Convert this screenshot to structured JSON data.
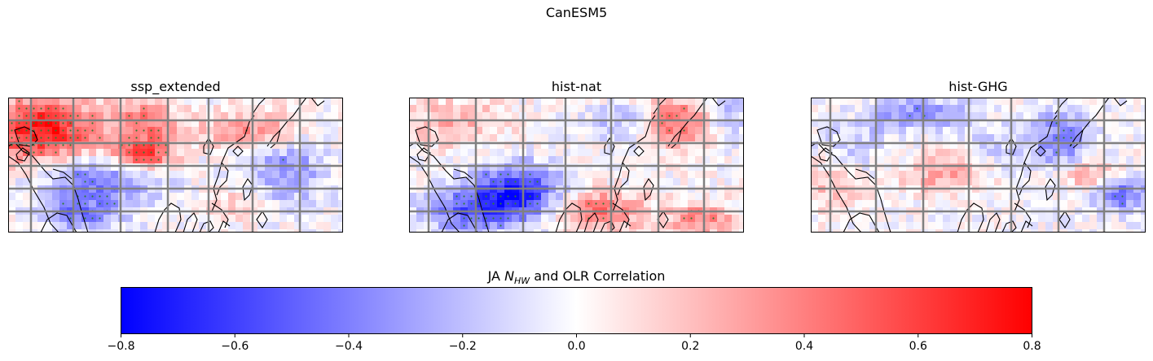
{
  "figure": {
    "suptitle": "CanESM5",
    "panels": [
      {
        "title": "ssp_extended"
      },
      {
        "title": "hist-nat"
      },
      {
        "title": "hist-GHG"
      }
    ],
    "colorbar": {
      "label_prefix": "JA ",
      "label_var": "N",
      "label_sub": "HW",
      "label_suffix": " and OLR Correlation",
      "cmap": "bwr",
      "vmin": -0.8,
      "vmax": 0.8,
      "ticks": [
        "−0.8",
        "−0.6",
        "−0.4",
        "−0.2",
        "0.0",
        "0.2",
        "0.4",
        "0.6",
        "0.8"
      ]
    },
    "colors": {
      "low": "#0000ff",
      "mid": "#ffffff",
      "high": "#ff0000",
      "gridlines": "#808080",
      "stipple": "#2e7d32"
    }
  }
}
